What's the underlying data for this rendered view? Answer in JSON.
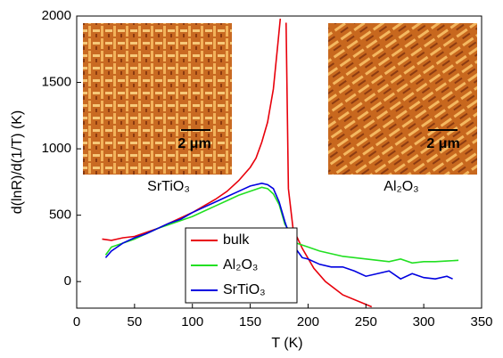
{
  "chart_data": {
    "type": "line",
    "xlabel": "T (K)",
    "ylabel": "d(lnR)/d(1/T) (K)",
    "xlim": [
      0,
      350
    ],
    "xticks": [
      0,
      50,
      100,
      150,
      200,
      250,
      300,
      350
    ],
    "ylim": [
      -200,
      2000
    ],
    "yticks": [
      0,
      500,
      1000,
      1500,
      2000
    ],
    "legend": "lower-center",
    "annotations": [
      "SrTiO₃",
      "Al₂O₃",
      "2 μm",
      "2 μm"
    ],
    "series": [
      {
        "name": "bulk",
        "color": "#e8000b",
        "x": [
          22,
          30,
          40,
          50,
          60,
          70,
          80,
          90,
          100,
          110,
          120,
          130,
          140,
          150,
          155,
          160,
          165,
          170,
          174,
          176,
          180,
          181,
          183,
          187,
          195,
          205,
          215,
          230,
          255
        ],
        "values": [
          320,
          310,
          330,
          340,
          370,
          400,
          440,
          480,
          520,
          570,
          620,
          680,
          760,
          860,
          930,
          1050,
          1200,
          1450,
          1800,
          1980,
          null,
          1950,
          700,
          400,
          250,
          100,
          0,
          -100,
          -190
        ]
      },
      {
        "name": "Al₂O₃",
        "color": "#22e022",
        "x": [
          25,
          30,
          40,
          50,
          60,
          70,
          80,
          90,
          100,
          110,
          120,
          130,
          140,
          150,
          160,
          165,
          170,
          175,
          180,
          185,
          190,
          200,
          210,
          220,
          230,
          240,
          250,
          260,
          270,
          280,
          290,
          300,
          310,
          320,
          330
        ],
        "values": [
          200,
          260,
          290,
          320,
          360,
          400,
          430,
          460,
          490,
          530,
          570,
          610,
          650,
          680,
          710,
          700,
          660,
          580,
          430,
          370,
          290,
          260,
          230,
          210,
          190,
          180,
          170,
          160,
          150,
          170,
          140,
          150,
          150,
          155,
          160
        ]
      },
      {
        "name": "SrTiO₃",
        "color": "#0000e0",
        "x": [
          25,
          30,
          40,
          50,
          60,
          70,
          80,
          90,
          100,
          110,
          120,
          130,
          140,
          150,
          160,
          165,
          170,
          175,
          180,
          185,
          190,
          195,
          200,
          210,
          220,
          230,
          240,
          250,
          260,
          270,
          280,
          290,
          300,
          310,
          320,
          325
        ],
        "values": [
          180,
          230,
          290,
          330,
          360,
          400,
          440,
          470,
          520,
          560,
          600,
          640,
          680,
          720,
          740,
          730,
          700,
          600,
          450,
          320,
          240,
          180,
          170,
          130,
          110,
          110,
          80,
          40,
          60,
          80,
          20,
          60,
          30,
          20,
          40,
          20
        ]
      }
    ]
  }
}
